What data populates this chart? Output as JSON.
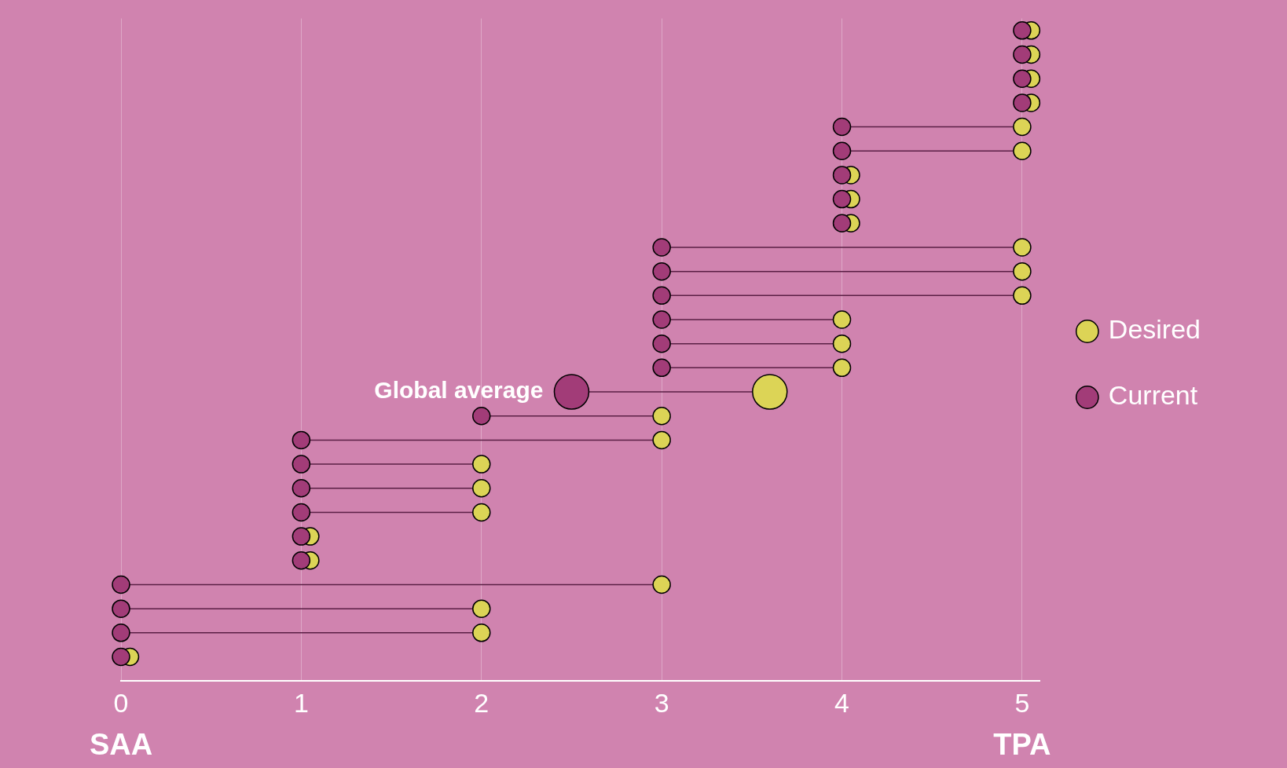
{
  "chart_data": {
    "type": "bubble",
    "orientation": "horizontal",
    "categories": [
      null,
      null,
      null,
      null,
      null,
      null,
      null,
      null,
      null,
      null,
      null,
      null,
      null,
      null,
      null,
      "Global average",
      null,
      null,
      null,
      null,
      null,
      null,
      null,
      null,
      null,
      null,
      null
    ],
    "series": [
      {
        "name": "Current",
        "color": "#a23c78",
        "values": [
          5,
          5,
          5,
          5,
          4,
          4,
          4,
          4,
          4,
          3,
          3,
          3,
          3,
          3,
          3,
          2.5,
          2,
          1,
          1,
          1,
          1,
          1,
          1,
          0,
          0,
          0,
          0
        ],
        "sizes": [
          0.25,
          0.25,
          0.25,
          0.25,
          0.25,
          0.25,
          0.25,
          0.25,
          0.25,
          0.25,
          0.25,
          0.25,
          0.25,
          0.25,
          0.25,
          1,
          0.25,
          0.25,
          0.25,
          0.25,
          0.25,
          0.25,
          0.25,
          0.25,
          0.25,
          0.25,
          0.25
        ]
      },
      {
        "name": "Desired",
        "color": "#dcd456",
        "values": [
          5.05,
          5.05,
          5.05,
          5.05,
          5,
          5,
          4.05,
          4.05,
          4.05,
          5,
          5,
          5,
          4,
          4,
          4,
          3.6,
          3,
          3,
          2,
          2,
          2,
          1.05,
          1.05,
          3,
          2,
          2,
          0.05
        ],
        "sizes": [
          0.25,
          0.25,
          0.25,
          0.25,
          0.25,
          0.25,
          0.25,
          0.25,
          0.25,
          0.25,
          0.25,
          0.25,
          0.25,
          0.25,
          0.25,
          1,
          0.25,
          0.25,
          0.25,
          0.25,
          0.25,
          0.25,
          0.25,
          0.25,
          0.25,
          0.25,
          0.25
        ]
      }
    ],
    "xlim": [
      0,
      5.1
    ],
    "xticks": [
      0,
      1,
      2,
      3,
      4,
      5
    ],
    "grid": "x",
    "legend": "right",
    "marker": "circle",
    "tick_labels": "x",
    "annotations": [
      "SAA",
      "TPA"
    ]
  }
}
